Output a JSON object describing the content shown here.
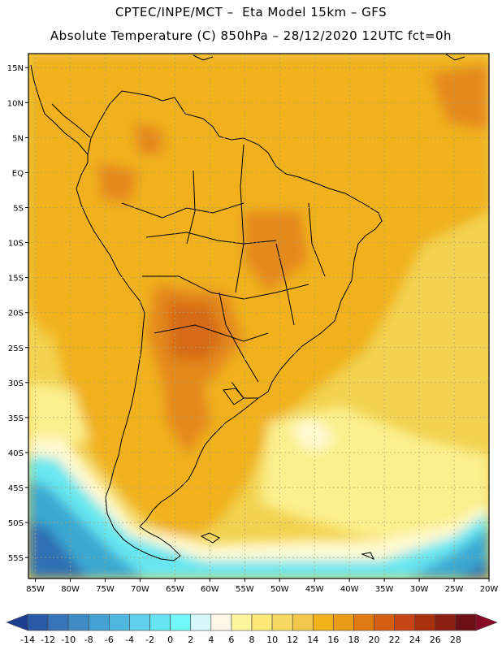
{
  "header": {
    "line1": "CPTEC/INPE/MCT –  Eta Model 15km – GFS",
    "line2": "Absolute Temperature (C) 850hPa – 28/12/2020 12UTC fct=0h"
  },
  "map": {
    "lat_labels": [
      "15N",
      "10N",
      "5N",
      "EQ",
      "5S",
      "10S",
      "15S",
      "20S",
      "25S",
      "30S",
      "35S",
      "40S",
      "45S",
      "50S",
      "55S"
    ],
    "lon_labels": [
      "85W",
      "80W",
      "75W",
      "70W",
      "65W",
      "60W",
      "55W",
      "50W",
      "45W",
      "40W",
      "35W",
      "30W",
      "25W",
      "20W"
    ],
    "colors": {
      "land_base": "#f0b11a",
      "warm": "#e4891f",
      "hot": "#d66a16",
      "ocean_warm": "#eec23a",
      "ocean_mild": "#f2d250",
      "ocean_cool": "#fbf08e",
      "pale": "#fff9d2",
      "cyan": "#67e6f0",
      "blue_mid": "#3aa8d2",
      "blue_deep": "#2f6fb3",
      "outline": "#000000",
      "grid": "#b0a070"
    }
  },
  "colorbar": {
    "labels": [
      "-14",
      "-12",
      "-10",
      "-8",
      "-6",
      "-4",
      "-2",
      "0",
      "2",
      "4",
      "6",
      "8",
      "10",
      "12",
      "14",
      "16",
      "18",
      "20",
      "22",
      "24",
      "26",
      "28"
    ],
    "colors": [
      "#1c3f8f",
      "#2a5aa5",
      "#3873b8",
      "#3f8bc6",
      "#44a1d2",
      "#4fb6de",
      "#5fcfea",
      "#66e3f1",
      "#70f7f6",
      "#d6f7fb",
      "#fff8e8",
      "#fff59e",
      "#fce977",
      "#f6d863",
      "#f2c84c",
      "#f0b11a",
      "#e99c16",
      "#e07b14",
      "#d45f13",
      "#c64415",
      "#a8300e",
      "#8a1f12",
      "#6e1116",
      "#870a25"
    ]
  }
}
